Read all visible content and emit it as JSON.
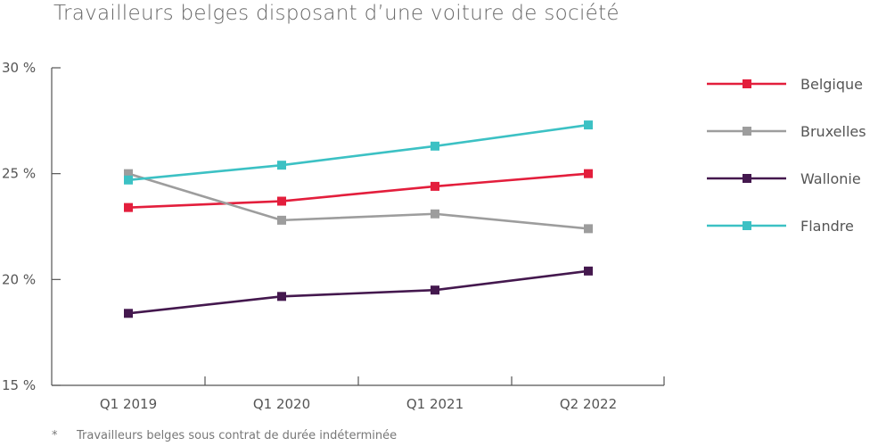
{
  "chart_data": {
    "type": "line",
    "title": "Travailleurs belges disposant d’une voiture de société",
    "footnote_marker": "*",
    "footnote": "Travailleurs belges sous contrat de durée indéterminée",
    "categories": [
      "Q1 2019",
      "Q1 2020",
      "Q1 2021",
      "Q2 2022"
    ],
    "y_ticks": [
      {
        "value": 15,
        "label": "15 %"
      },
      {
        "value": 20,
        "label": "20 %"
      },
      {
        "value": 25,
        "label": "25 %"
      },
      {
        "value": 30,
        "label": "30 %"
      }
    ],
    "ylim": [
      15,
      30
    ],
    "grid": false,
    "legend_position": "right",
    "series": [
      {
        "name": "Belgique",
        "color": "#e31e3c",
        "values": [
          23.4,
          23.7,
          24.4,
          25.0
        ]
      },
      {
        "name": "Bruxelles",
        "color": "#9d9d9d",
        "values": [
          25.0,
          22.8,
          23.1,
          22.4
        ]
      },
      {
        "name": "Wallonie",
        "color": "#44184e",
        "values": [
          18.4,
          19.2,
          19.5,
          20.4
        ]
      },
      {
        "name": "Flandre",
        "color": "#3cc1c4",
        "values": [
          24.7,
          25.4,
          26.3,
          27.3
        ]
      }
    ]
  }
}
